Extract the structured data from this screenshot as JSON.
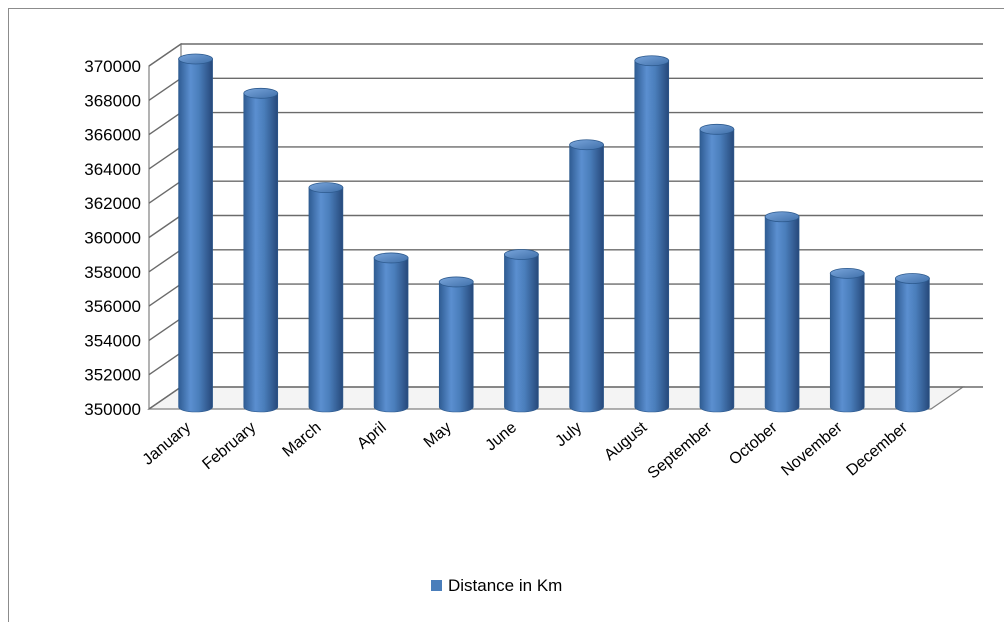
{
  "chart_data": {
    "type": "bar",
    "style": "3d-cylinder",
    "categories": [
      "January",
      "February",
      "March",
      "April",
      "May",
      "June",
      "July",
      "August",
      "September",
      "October",
      "November",
      "December"
    ],
    "series": [
      {
        "name": "Distance in Km",
        "color": "#4a7ebb",
        "values": [
          370000,
          368000,
          362500,
          358400,
          357000,
          358600,
          365000,
          369900,
          365900,
          360800,
          357500,
          357200
        ]
      }
    ],
    "title": "",
    "xlabel": "",
    "ylabel": "",
    "ylim": [
      350000,
      370000
    ],
    "yticks": [
      "350000",
      "352000",
      "354000",
      "356000",
      "358000",
      "360000",
      "362000",
      "364000",
      "366000",
      "368000",
      "370000"
    ],
    "grid": true,
    "legend_position": "bottom"
  }
}
